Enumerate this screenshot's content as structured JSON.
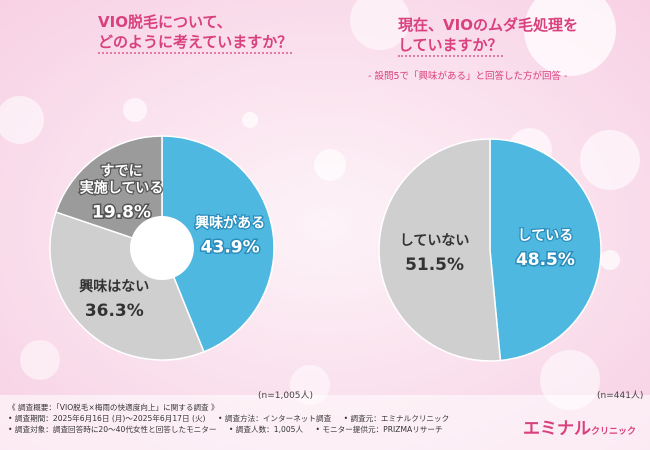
{
  "charts": [
    {
      "title_line1": "VIO脱毛について、",
      "title_line2": "どのように考えていますか？",
      "sample": "(n=1,005人)"
    },
    {
      "title_line1": "現在、VIOのムダ毛処理を",
      "title_line2": "していますか？",
      "note": "- 設問5で「興味がある」と回答した方が回答 -",
      "sample": "(n=441人)"
    }
  ],
  "chart_data": [
    {
      "type": "pie",
      "donut": true,
      "title": "VIO脱毛について、どのように考えていますか？",
      "slices": [
        {
          "label": "興味がある",
          "value": 43.9,
          "color": "#4fb8e0",
          "text_color": "#ffffff",
          "stroke": "#2b8dbb",
          "label_lines": [
            "興味がある"
          ],
          "value_text": "43.9%"
        },
        {
          "label": "興味はない",
          "value": 36.3,
          "color": "#cfcfcf",
          "text_color": "#333333",
          "stroke": "#ffffff",
          "label_lines": [
            "興味はない"
          ],
          "value_text": "36.3%"
        },
        {
          "label": "すでに実施している",
          "value": 19.8,
          "color": "#9b9b9b",
          "text_color": "#ffffff",
          "stroke": "#555555",
          "label_lines": [
            "すでに",
            "実施している"
          ],
          "value_text": "19.8%"
        }
      ]
    },
    {
      "type": "pie",
      "donut": false,
      "title": "現在、VIOのムダ毛処理をしていますか？",
      "slices": [
        {
          "label": "している",
          "value": 48.5,
          "color": "#4fb8e0",
          "text_color": "#ffffff",
          "stroke": "#2b8dbb",
          "label_lines": [
            "している"
          ],
          "value_text": "48.5%"
        },
        {
          "label": "していない",
          "value": 51.5,
          "color": "#cfcfcf",
          "text_color": "#333333",
          "stroke": "#ffffff",
          "label_lines": [
            "していない"
          ],
          "value_text": "51.5%"
        }
      ]
    }
  ],
  "survey": {
    "line1": "《 調査概要：「VIO脱毛×梅雨の快適度向上」に関する調査 》",
    "line2": [
      "• 調査期間：2025年6月16日 (月)～2025年6月17日 (火)",
      "• 調査方法：インターネット調査",
      "• 調査元：エミナルクリニック"
    ],
    "line3": [
      "• 調査対象：調査回答時に20～40代女性と回答したモニター",
      "• 調査人数：1,005人",
      "• モニター提供元：PRIZMAリサーチ"
    ]
  },
  "logo": {
    "main": "エミナル",
    "sub": "クリニック"
  },
  "colors": {
    "accent": "#d9407e",
    "blue": "#4fb8e0",
    "light_gray": "#cfcfcf",
    "dark_gray": "#9b9b9b"
  }
}
